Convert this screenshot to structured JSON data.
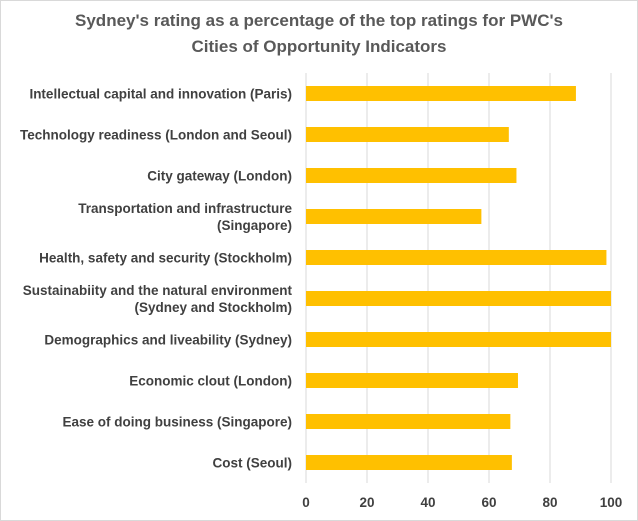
{
  "chart_data": {
    "type": "bar",
    "orientation": "horizontal",
    "title": "Sydney's rating as a percentage of the top ratings  for PWC's Cities of Opportunity Indicators",
    "title_lines": [
      "Sydney's rating as a percentage of the top ratings  for PWC's",
      "Cities of Opportunity Indicators"
    ],
    "categories": [
      "Intellectual capital and innovation (Paris)",
      "Technology readiness (London and Seoul)",
      "City gateway (London)",
      "Transportation and infrastructure (Singapore)",
      "Health, safety and security (Stockholm)",
      "Sustainabiity and the natural environment (Sydney and Stockholm)",
      "Demographics and liveability (Sydney)",
      "Economic clout (London)",
      "Ease of doing business (Singapore)",
      "Cost (Seoul)"
    ],
    "category_label_lines": [
      [
        "Intellectual capital and innovation (Paris)"
      ],
      [
        "Technology readiness (London and Seoul)"
      ],
      [
        "City gateway (London)"
      ],
      [
        "Transportation and infrastructure",
        "(Singapore)"
      ],
      [
        "Health, safety and security (Stockholm)"
      ],
      [
        "Sustainabiity and the natural environment",
        "(Sydney and Stockholm)"
      ],
      [
        "Demographics and liveability (Sydney)"
      ],
      [
        "Economic clout (London)"
      ],
      [
        "Ease of doing business (Singapore)"
      ],
      [
        "Cost (Seoul)"
      ]
    ],
    "values": [
      88.5,
      66.5,
      69,
      57.5,
      98.5,
      100,
      100,
      69.5,
      67,
      67.5
    ],
    "xlabel": "",
    "ylabel": "",
    "xlim": [
      0,
      100
    ],
    "xticks": [
      "0",
      "20",
      "40",
      "60",
      "80",
      "100"
    ],
    "grid": true,
    "legend": "none",
    "bar_color": "#FFC000",
    "grid_color": "#d9d9d9"
  }
}
